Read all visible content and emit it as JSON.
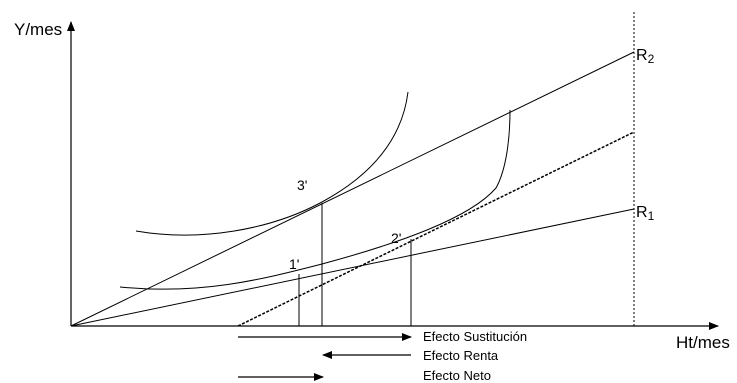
{
  "axes": {
    "y_label": "Y/mes",
    "x_label": "Ht/mes"
  },
  "lines": {
    "r1_label": "R",
    "r1_sub": "1",
    "r2_label": "R",
    "r2_sub": "2"
  },
  "points": {
    "p1": "1'",
    "p2": "2'",
    "p3": "3'"
  },
  "effects": {
    "substitution": "Efecto Sustitución",
    "income": "Efecto Renta",
    "net": "Efecto Neto"
  }
}
